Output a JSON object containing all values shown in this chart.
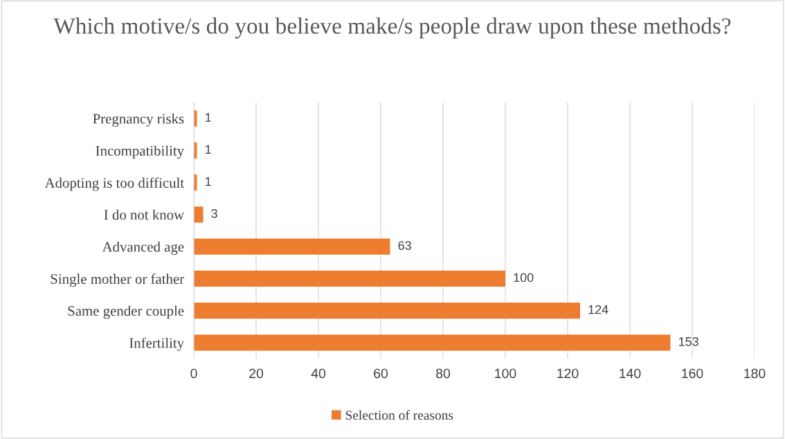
{
  "chart_data": {
    "type": "bar",
    "orientation": "horizontal",
    "title": "Which motive/s do you believe make/s people draw upon these methods?",
    "categories": [
      "Pregnancy risks",
      "Incompatibility",
      "Adopting is too difficult",
      "I do not know",
      "Advanced age",
      "Single mother or father",
      "Same gender couple",
      "Infertility"
    ],
    "series": [
      {
        "name": "Selection of reasons",
        "color": "#ed7d31",
        "values": [
          1,
          1,
          1,
          3,
          63,
          100,
          124,
          153
        ]
      }
    ],
    "xlim": [
      0,
      180
    ],
    "xticks": [
      0,
      20,
      40,
      60,
      80,
      100,
      120,
      140,
      160,
      180
    ],
    "grid": "x",
    "legend": "bottom",
    "data_labels": true
  }
}
